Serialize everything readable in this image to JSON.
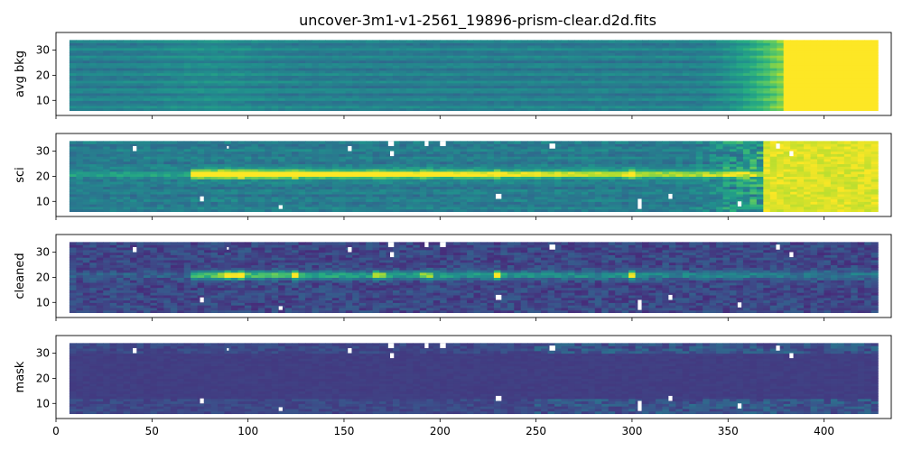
{
  "chart_data": {
    "type": "heatmap",
    "title": "uncover-3m1-v1-2561_19896-prism-clear.d2d.fits",
    "colormap": "viridis",
    "xlim": [
      0,
      435
    ],
    "ylim": [
      4,
      37
    ],
    "data_x_range": [
      7,
      428
    ],
    "data_y_range": [
      6,
      34
    ],
    "grid": false,
    "x_ticks": [
      0,
      50,
      100,
      150,
      200,
      250,
      300,
      350,
      400
    ],
    "y_ticks": [
      10,
      20,
      30
    ],
    "panels": [
      {
        "ylabel": "avg bkg",
        "show_xticklabels": false
      },
      {
        "ylabel": "sci",
        "show_xticklabels": false
      },
      {
        "ylabel": "cleaned",
        "show_xticklabels": false
      },
      {
        "ylabel": "mask",
        "show_xticklabels": true
      }
    ],
    "trace_center_y": 21,
    "emission_line_x": [
      88,
      95,
      124,
      168,
      193,
      230,
      300
    ]
  }
}
